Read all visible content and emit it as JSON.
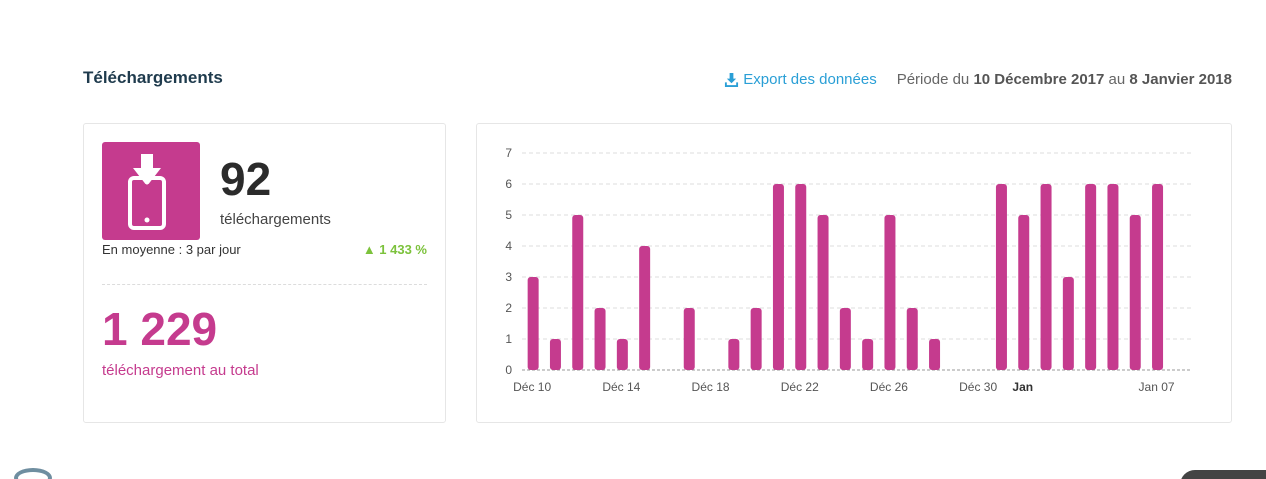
{
  "section": {
    "title": "Téléchargements"
  },
  "header": {
    "export_label": "Export des données",
    "export_icon": "download-icon",
    "period_prefix": "Période du",
    "period_start": "10 Décembre 2017",
    "period_mid": "au",
    "period_end": "8 Janvier 2018"
  },
  "stats": {
    "icon": "mobile-download-icon",
    "count": "92",
    "count_label": "téléchargements",
    "average": "En moyenne : 3 par jour",
    "growth": "▲ 1 433 %",
    "total": "1 229",
    "total_label": "téléchargement au total"
  },
  "colors": {
    "accent": "#c53b8e",
    "link": "#2a9fd6",
    "growth": "#7cc23c",
    "title": "#1f3b4d"
  },
  "chart_data": {
    "type": "bar",
    "x": [
      "2017-12-10",
      "2017-12-11",
      "2017-12-12",
      "2017-12-13",
      "2017-12-14",
      "2017-12-15",
      "2017-12-16",
      "2017-12-17",
      "2017-12-18",
      "2017-12-19",
      "2017-12-20",
      "2017-12-21",
      "2017-12-22",
      "2017-12-23",
      "2017-12-24",
      "2017-12-25",
      "2017-12-26",
      "2017-12-27",
      "2017-12-28",
      "2017-12-29",
      "2017-12-30",
      "2017-12-31",
      "2018-01-01",
      "2018-01-02",
      "2018-01-03",
      "2018-01-04",
      "2018-01-05",
      "2018-01-06",
      "2018-01-07",
      "2018-01-08"
    ],
    "values": [
      3,
      1,
      5,
      2,
      1,
      4,
      0,
      2,
      0,
      1,
      2,
      6,
      6,
      5,
      2,
      1,
      5,
      2,
      1,
      0,
      0,
      6,
      5,
      6,
      3,
      6,
      6,
      5,
      6,
      0
    ],
    "ylim": [
      0,
      7
    ],
    "yticks": [
      0,
      1,
      2,
      3,
      4,
      5,
      6,
      7
    ],
    "xtick_labels": [
      {
        "date": "2017-12-10",
        "label": "Déc 10",
        "bold": false
      },
      {
        "date": "2017-12-14",
        "label": "Déc 14",
        "bold": false
      },
      {
        "date": "2017-12-18",
        "label": "Déc 18",
        "bold": false
      },
      {
        "date": "2017-12-22",
        "label": "Déc 22",
        "bold": false
      },
      {
        "date": "2017-12-26",
        "label": "Déc 26",
        "bold": false
      },
      {
        "date": "2017-12-30",
        "label": "Déc 30",
        "bold": false
      },
      {
        "date": "2018-01-01",
        "label": "Jan",
        "bold": true
      },
      {
        "date": "2018-01-07",
        "label": "Jan 07",
        "bold": false
      }
    ],
    "grid": true,
    "bar_color": "#c53b8e"
  }
}
